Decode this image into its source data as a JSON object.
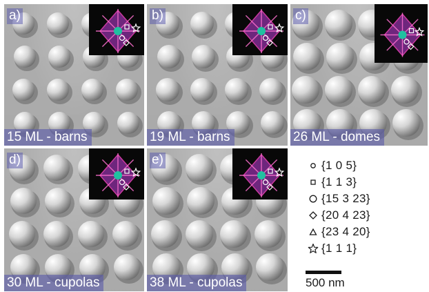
{
  "panels": [
    {
      "letter": "a)",
      "label": "15 ML - barns"
    },
    {
      "letter": "b)",
      "label": "19 ML - barns"
    },
    {
      "letter": "c)",
      "label": "26 ML - domes"
    },
    {
      "letter": "d)",
      "label": "30 ML - cupolas"
    },
    {
      "letter": "e)",
      "label": "38 ML - cupolas"
    }
  ],
  "legend": {
    "items": [
      {
        "symbol": "circle-small-icon",
        "text": "{1 0 5}"
      },
      {
        "symbol": "square-icon",
        "text": "{1 1 3}"
      },
      {
        "symbol": "circle-icon",
        "text": "{15 3 23}"
      },
      {
        "symbol": "diamond-icon",
        "text": "{20 4 23}"
      },
      {
        "symbol": "triangle-icon",
        "text": "{23 4 20}"
      },
      {
        "symbol": "star-icon",
        "text": "{1 1 1}"
      }
    ]
  },
  "scale_bar": {
    "label": "500 nm"
  },
  "colors": {
    "label_bg": "#5a5aaa",
    "inset_bg": "#080808",
    "inset_pattern": "#e040b0",
    "inset_core": "#20c0a0"
  }
}
